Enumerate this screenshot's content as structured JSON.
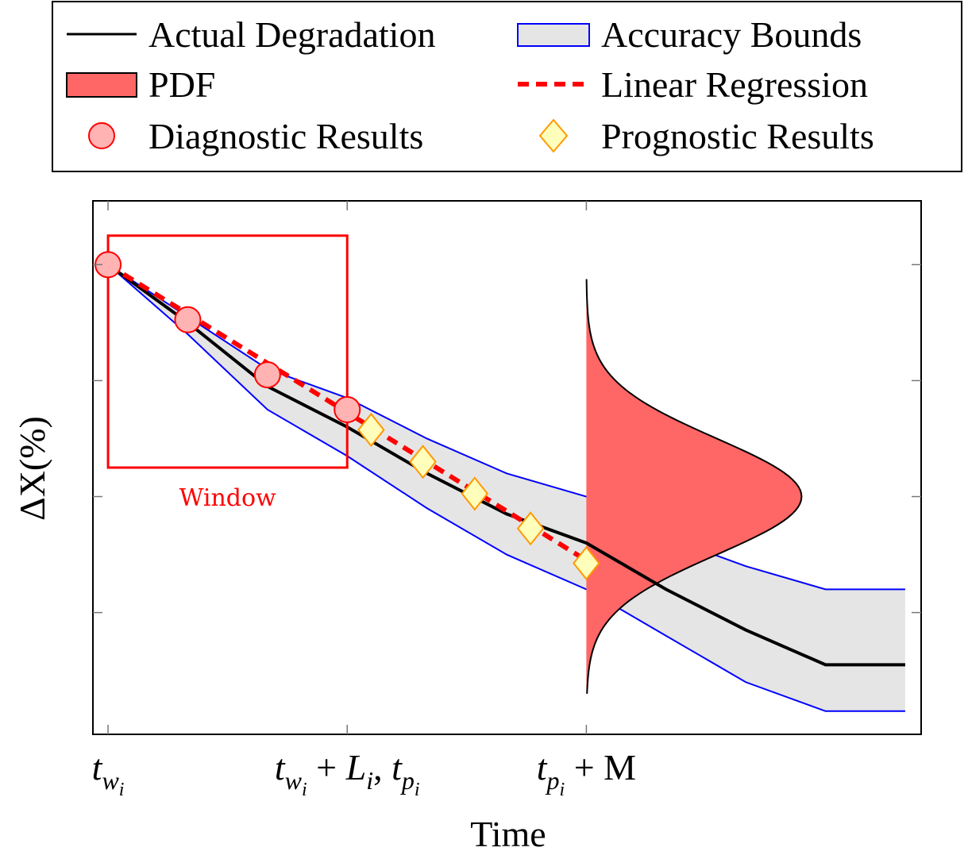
{
  "chart_data": {
    "type": "line",
    "title": "",
    "xlabel": "Time",
    "ylabel": "ΔX(%)",
    "x_ticks": [
      {
        "x": 0,
        "label": "t_{w_i}"
      },
      {
        "x": 3,
        "label": "t_{w_i} + L_i, t_{p_i}"
      },
      {
        "x": 6,
        "label": "t_{p_i} + M"
      }
    ],
    "xlim": [
      -0.19,
      10.2
    ],
    "ylim": [
      -8.1,
      1.1
    ],
    "y_tick_values": [
      0,
      -2,
      -4,
      -6
    ],
    "grid": false,
    "legend": {
      "placement": "top",
      "entries": [
        {
          "label": "Actual Degradation",
          "symbol": "line",
          "color": "#000000"
        },
        {
          "label": "Accuracy Bounds",
          "symbol": "band",
          "color": "#0000ff",
          "fill": "#e5e5e5"
        },
        {
          "label": "PDF",
          "symbol": "filled-box",
          "color": "#ff6666"
        },
        {
          "label": "Linear Regression",
          "symbol": "dashed-line",
          "color": "#ff0000"
        },
        {
          "label": "Diagnostic Results",
          "symbol": "circle",
          "color": "#ff0000",
          "fill": "#ffb3b3"
        },
        {
          "label": "Prognostic Results",
          "symbol": "diamond",
          "color": "#ff9900",
          "fill": "#ffffbb"
        }
      ]
    },
    "window": {
      "label": "Window",
      "x_range": [
        0,
        3
      ],
      "y_range": [
        -3.5,
        0.5
      ],
      "color": "#ff0000"
    },
    "series": [
      {
        "name": "Actual Degradation",
        "kind": "line",
        "color": "#000000",
        "x": [
          0,
          1,
          2,
          3,
          4,
          5,
          6,
          7,
          8,
          9,
          10
        ],
        "y": [
          0,
          -1.0,
          -2.1,
          -2.8,
          -3.6,
          -4.3,
          -4.8,
          -5.6,
          -6.3,
          -6.9,
          -6.9
        ]
      },
      {
        "name": "Accuracy Bounds",
        "kind": "band",
        "color": "#0000ff",
        "fill": "#e5e5e5",
        "x": [
          0,
          1,
          2,
          3,
          4,
          5,
          6,
          7,
          8,
          9,
          10
        ],
        "upper": [
          0,
          -0.9,
          -1.8,
          -2.3,
          -3.0,
          -3.6,
          -4.0,
          -4.7,
          -5.2,
          -5.6,
          -5.6
        ],
        "lower": [
          0,
          -1.2,
          -2.5,
          -3.3,
          -4.2,
          -5.0,
          -5.6,
          -6.4,
          -7.2,
          -7.7,
          -7.7
        ]
      },
      {
        "name": "Linear Regression",
        "kind": "dashed-line",
        "color": "#ff0000",
        "x": [
          0,
          6
        ],
        "y": [
          0,
          -5.1
        ]
      },
      {
        "name": "Diagnostic Results",
        "kind": "circle",
        "color": "#ff0000",
        "fill": "#ffb3b3",
        "x": [
          0,
          1,
          2,
          3
        ],
        "y": [
          0,
          -0.95,
          -1.9,
          -2.5
        ]
      },
      {
        "name": "Prognostic Results",
        "kind": "diamond",
        "color": "#ff9900",
        "fill": "#ffffbb",
        "x": [
          3.3,
          3.95,
          4.6,
          5.3,
          6.0
        ],
        "y": [
          -2.85,
          -3.4,
          -3.95,
          -4.55,
          -5.15
        ]
      },
      {
        "name": "PDF",
        "kind": "pdf",
        "color": "#ff6666",
        "x_base": 6,
        "mean_y": -4.0,
        "sigma": 1.0,
        "peak_width": 2.7,
        "y_range": [
          -7.4,
          -0.25
        ]
      }
    ]
  }
}
